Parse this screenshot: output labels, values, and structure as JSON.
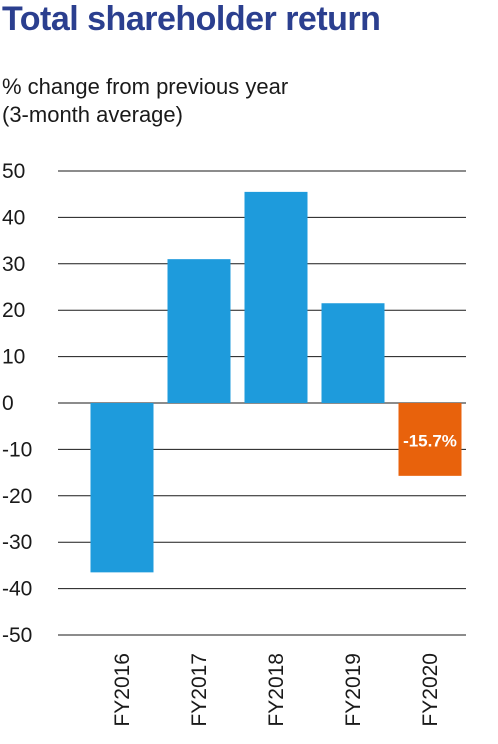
{
  "page": {
    "title": "Total shareholder return",
    "subtitle_line1": "% change from previous year",
    "subtitle_line2": "(3-month average)"
  },
  "colors": {
    "title": "#2b3f8f",
    "bar": "#1e9bdc",
    "highlight_bar": "#e8620c",
    "grid": "#1a1a1a",
    "label_text": "#ffffff"
  },
  "chart_data": {
    "type": "bar",
    "title": "Total shareholder return",
    "subtitle": "% change from previous year (3-month average)",
    "categories": [
      "FY2016",
      "FY2017",
      "FY2018",
      "FY2019",
      "FY2020"
    ],
    "values": [
      -36.5,
      31,
      45.5,
      21.5,
      -15.7
    ],
    "highlight_index": 4,
    "data_labels": {
      "FY2020": "-15.7%"
    },
    "ylim": [
      -50,
      50
    ],
    "yticks": [
      50,
      40,
      30,
      20,
      10,
      0,
      -10,
      -20,
      -30,
      -40,
      -50
    ],
    "grid": true,
    "x_label_rotation": "vertical"
  }
}
